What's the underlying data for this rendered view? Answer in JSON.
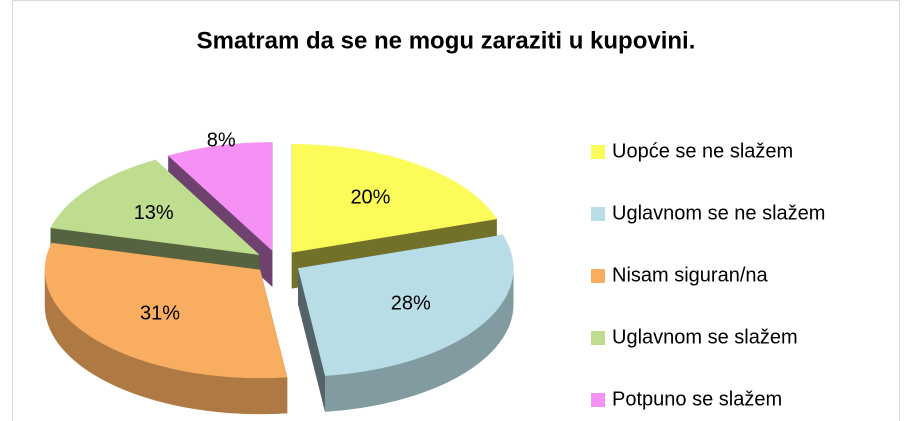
{
  "chart_data": {
    "type": "pie3d",
    "title": "Smatram da se ne mogu zaraziti u kupovini.",
    "categories": [
      "Uopće se ne slažem",
      "Uglavnom se ne slažem",
      "Nisam siguran/na",
      "Uglavnom se slažem",
      "Potpuno se slažem"
    ],
    "values": [
      20,
      28,
      31,
      13,
      8
    ],
    "value_labels": [
      "20%",
      "28%",
      "31%",
      "13%",
      "8%"
    ],
    "colors": [
      "#fbfb5a",
      "#b8dde6",
      "#f9ad60",
      "#bfdd8e",
      "#f590f5"
    ],
    "legend": "right"
  }
}
